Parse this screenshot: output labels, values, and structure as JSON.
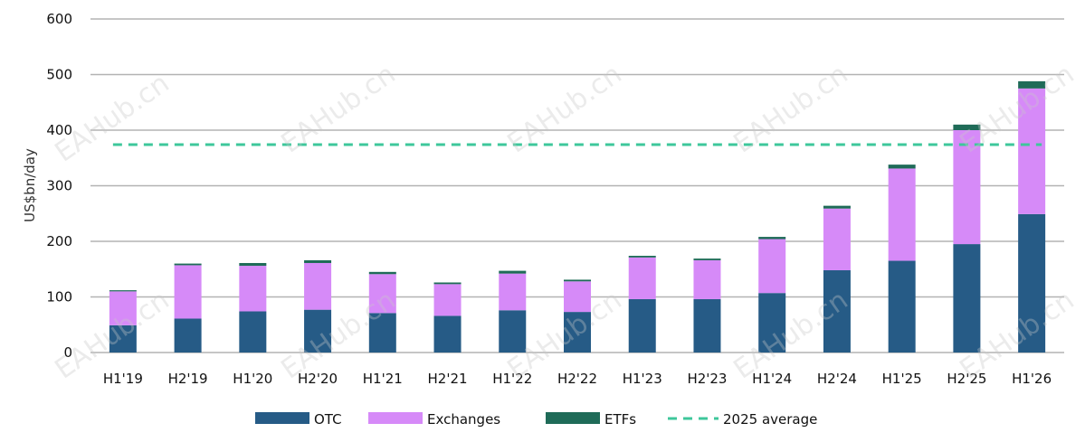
{
  "chart_data": {
    "type": "bar",
    "stacked": true,
    "categories": [
      "H1'19",
      "H2'19",
      "H1'20",
      "H2'20",
      "H1'21",
      "H2'21",
      "H1'22",
      "H2'22",
      "H1'23",
      "H2'23",
      "H1'24",
      "H2'24",
      "H1'25",
      "H2'25",
      "H1'26"
    ],
    "series": [
      {
        "name": "OTC",
        "color": "#265b86",
        "values": [
          49,
          61,
          74,
          77,
          71,
          66,
          76,
          73,
          96,
          96,
          107,
          148,
          165,
          195,
          249
        ]
      },
      {
        "name": "Exchanges",
        "color": "#d68af8",
        "values": [
          61,
          96,
          82,
          84,
          70,
          57,
          66,
          55,
          75,
          70,
          97,
          111,
          166,
          205,
          226
        ]
      },
      {
        "name": "ETFs",
        "color": "#1f6b58",
        "values": [
          2,
          3,
          5,
          5,
          4,
          3,
          5,
          3,
          3,
          3,
          4,
          5,
          7,
          10,
          13
        ]
      }
    ],
    "reference_line": {
      "name": "2025 average",
      "value": 374,
      "color": "#3ec79b",
      "style": "dashed"
    },
    "ylabel": "US$bn/day",
    "xlabel": "",
    "title": "",
    "ylim": [
      0,
      600
    ],
    "yticks": [
      0,
      100,
      200,
      300,
      400,
      500,
      600
    ],
    "grid": "horizontal",
    "legend_position": "bottom-center"
  },
  "watermark": "EAHub.cn"
}
